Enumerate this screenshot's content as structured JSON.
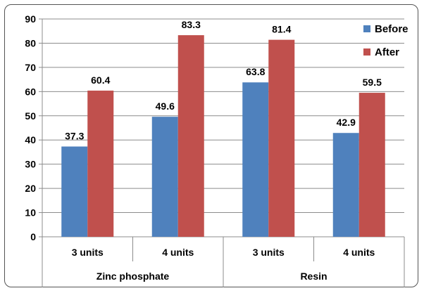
{
  "chart_data": {
    "type": "bar",
    "title": "",
    "xlabel": "",
    "ylabel": "",
    "ylim": [
      0,
      90
    ],
    "yticks": [
      0,
      10,
      20,
      30,
      40,
      50,
      60,
      70,
      80,
      90
    ],
    "grid": true,
    "legend_position": "top-right",
    "categories": [
      "3 units",
      "4 units",
      "3 units",
      "4 units"
    ],
    "groups": [
      {
        "label": "Zinc phosphate",
        "categories": [
          "3 units",
          "4 units"
        ]
      },
      {
        "label": "Resin",
        "categories": [
          "3 units",
          "4 units"
        ]
      }
    ],
    "series": [
      {
        "name": "Before",
        "color": "#4f81bd",
        "values": [
          37.3,
          49.6,
          63.8,
          42.9
        ]
      },
      {
        "name": "After",
        "color": "#c0504d",
        "values": [
          60.4,
          83.3,
          81.4,
          59.5
        ]
      }
    ],
    "data_labels": [
      [
        "37.3",
        "49.6",
        "63.8",
        "42.9"
      ],
      [
        "60.4",
        "83.3",
        "81.4",
        "59.5"
      ]
    ]
  }
}
